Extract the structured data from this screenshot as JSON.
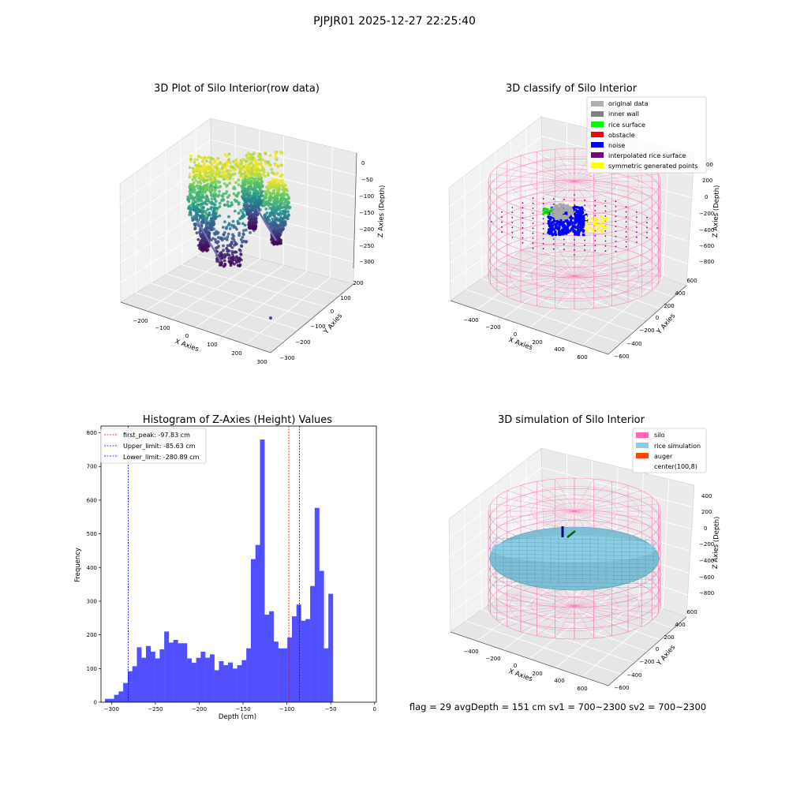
{
  "suptitle": "PJPJR01 2025-12-27 22:25:40",
  "status_line": "flag = 29  avgDepth = 151 cm  sv1 = 700~2300  sv2 = 700~2300",
  "colors": {
    "silo": "#ff69b4",
    "rice_simulation": "#87ceeb",
    "auger": "#ff4500",
    "original_data": "#b0b0b0",
    "inner_wall": "#808080",
    "rice_surface": "#00ff00",
    "obstacle": "#ff0000",
    "noise": "#0000ff",
    "interpolated": "#800080",
    "symmetric": "#ffff00",
    "hist_bar": "#4c4cff"
  },
  "chart_data": [
    {
      "type": "scatter3d",
      "title": "3D Plot of Silo Interior(row data)",
      "xlabel": "X Axies",
      "ylabel": "Y Axies",
      "zlabel": "Z Axies (Depth)",
      "x_ticks": [
        "−200",
        "−100",
        "0",
        "100",
        "200",
        "300"
      ],
      "y_ticks": [
        "−300",
        "−200",
        "−100",
        "0",
        "100",
        "200"
      ],
      "z_ticks": [
        "0",
        "−50",
        "−100",
        "−150",
        "−200",
        "−250",
        "−300"
      ],
      "colormap": "viridis",
      "xlim": [
        -250,
        300
      ],
      "ylim": [
        -300,
        250
      ],
      "zlim": [
        -320,
        0
      ]
    },
    {
      "type": "scatter3d",
      "title": "3D classify of Silo Interior",
      "xlabel": "X Axies",
      "ylabel": "Y Axies",
      "zlabel": "Z Axies (Depth)",
      "x_ticks": [
        "−400",
        "−200",
        "0",
        "200",
        "400",
        "600"
      ],
      "y_ticks": [
        "−600",
        "−400",
        "−200",
        "0",
        "200",
        "400",
        "600"
      ],
      "z_ticks": [
        "200",
        "0",
        "−200",
        "−400",
        "−600",
        "−800"
      ],
      "z_top_partial": "00",
      "legend": [
        "original data",
        "inner wall",
        "rice surface",
        "obstacle",
        "noise",
        "interpolated rice surface",
        "symmetric generated points"
      ],
      "legend_position": "top-right"
    },
    {
      "type": "bar",
      "title": "Histogram of Z-Axies (Height) Values",
      "xlabel": "Depth (cm)",
      "ylabel": "Frequency",
      "xlim": [
        -312,
        2
      ],
      "ylim": [
        0,
        820
      ],
      "x_ticks": [
        "−300",
        "−250",
        "−200",
        "−150",
        "−100",
        "−50",
        "0"
      ],
      "x_tick_values": [
        -300,
        -250,
        -200,
        -150,
        -100,
        -50,
        0
      ],
      "y_ticks": [
        "0",
        "100",
        "200",
        "300",
        "400",
        "500",
        "600",
        "700",
        "800"
      ],
      "y_tick_values": [
        0,
        100,
        200,
        300,
        400,
        500,
        600,
        700,
        800
      ],
      "bin_start": -307.5,
      "bin_width": 5.2,
      "values": [
        10,
        10,
        22,
        32,
        57,
        92,
        107,
        163,
        132,
        167,
        150,
        130,
        157,
        210,
        177,
        185,
        175,
        175,
        130,
        117,
        132,
        150,
        132,
        142,
        95,
        122,
        110,
        118,
        100,
        110,
        125,
        160,
        425,
        467,
        780,
        260,
        270,
        180,
        160,
        160,
        192,
        255,
        290,
        242,
        247,
        345,
        577,
        390,
        160,
        322
      ],
      "vlines": [
        {
          "label": "first_peak: -97.83 cm",
          "x": -97.83,
          "color": "#ff0000"
        },
        {
          "label": "Upper_limit: -85.63 cm",
          "x": -85.63,
          "color": "#0000ff"
        },
        {
          "label": "Lower_limit: -280.89 cm",
          "x": -280.89,
          "color": "#0000ff"
        }
      ],
      "legend_position": "top-left"
    },
    {
      "type": "surface3d",
      "title": "3D simulation of Silo Interior",
      "xlabel": "X Axies",
      "ylabel": "Y Axies",
      "zlabel": "Z Axies (Depth)",
      "x_ticks": [
        "−400",
        "−200",
        "0",
        "200",
        "400",
        "600"
      ],
      "y_ticks": [
        "−600",
        "−400",
        "−200",
        "0",
        "200",
        "400",
        "600"
      ],
      "z_ticks": [
        "400",
        "200",
        "0",
        "−200",
        "−400",
        "−600",
        "−800"
      ],
      "legend": [
        "silo",
        "rice simulation",
        "auger",
        "center(100,8)"
      ],
      "legend_position": "top-right"
    }
  ]
}
